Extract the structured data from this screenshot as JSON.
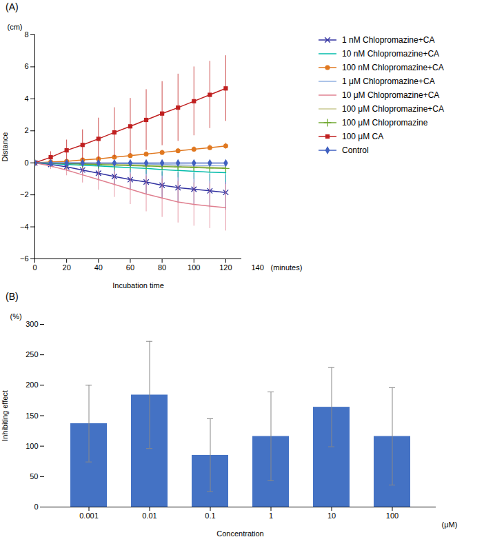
{
  "chart_data": [
    {
      "type": "line",
      "title": "(A)",
      "xlabel": "Incubation time",
      "ylabel": "Distance",
      "annotations": [
        {
          "text": "(cm)",
          "axis": "y"
        },
        {
          "text": "(minutes)",
          "axis": "x"
        },
        {
          "text": "140",
          "x": 140
        }
      ],
      "x": [
        0,
        10,
        20,
        30,
        40,
        50,
        60,
        70,
        80,
        90,
        100,
        110,
        120
      ],
      "series": [
        {
          "name": "1 nM Chlopromazine+CA",
          "color": "#3030A0",
          "marker": "times",
          "line_style": "solid",
          "values": [
            0,
            -0.1,
            -0.25,
            -0.45,
            -0.65,
            -0.85,
            -1.05,
            -1.2,
            -1.4,
            -1.55,
            -1.65,
            -1.75,
            -1.85
          ],
          "yerr": [
            0,
            0.15,
            0.25,
            0.35,
            0.45,
            0.55,
            0.65,
            0.75,
            0.85,
            0.95,
            1.0,
            1.05,
            1.1
          ]
        },
        {
          "name": "10 nM Chlopromazine+CA",
          "color": "#00BBAA",
          "marker": "none",
          "line_style": "solid",
          "values": [
            0,
            -0.05,
            -0.1,
            -0.15,
            -0.2,
            -0.25,
            -0.3,
            -0.35,
            -0.42,
            -0.48,
            -0.53,
            -0.58,
            -0.62
          ],
          "yerr": [
            0,
            0.08,
            0.12,
            0.16,
            0.2,
            0.25,
            0.3,
            0.35,
            0.4,
            0.45,
            0.5,
            0.55,
            0.6
          ]
        },
        {
          "name": "100 nM Chlopromazine+CA",
          "color": "#E07820",
          "marker": "circle",
          "line_style": "solid",
          "values": [
            0,
            0.05,
            0.1,
            0.18,
            0.25,
            0.35,
            0.45,
            0.55,
            0.65,
            0.75,
            0.85,
            0.95,
            1.05
          ],
          "yerr": [
            0,
            0.05,
            0.07,
            0.09,
            0.1,
            0.12,
            0.13,
            0.14,
            0.15,
            0.16,
            0.17,
            0.18,
            0.19
          ]
        },
        {
          "name": "1 μM Chlopromazine+CA",
          "color": "#90B0E0",
          "marker": "none",
          "line_style": "solid",
          "values": [
            0,
            0.01,
            0.0,
            -0.01,
            -0.02,
            -0.04,
            -0.06,
            -0.08,
            -0.1,
            -0.13,
            -0.15,
            -0.17,
            -0.19
          ],
          "yerr": [
            0,
            0.04,
            0.06,
            0.07,
            0.08,
            0.09,
            0.1,
            0.11,
            0.12,
            0.13,
            0.14,
            0.15,
            0.16
          ]
        },
        {
          "name": "10 μM Chlopromazine+CA",
          "color": "#E08090",
          "marker": "none",
          "line_style": "solid",
          "values": [
            0,
            -0.2,
            -0.45,
            -0.75,
            -1.05,
            -1.35,
            -1.65,
            -1.95,
            -2.2,
            -2.45,
            -2.6,
            -2.7,
            -2.8
          ],
          "yerr": [
            0,
            0.2,
            0.35,
            0.5,
            0.65,
            0.8,
            0.95,
            1.1,
            1.2,
            1.3,
            1.35,
            1.4,
            1.45
          ]
        },
        {
          "name": "100 μM Chlopromazine+CA",
          "color": "#C8C890",
          "marker": "none",
          "line_style": "solid",
          "values": [
            0,
            0.0,
            -0.02,
            -0.04,
            -0.06,
            -0.09,
            -0.12,
            -0.15,
            -0.18,
            -0.21,
            -0.24,
            -0.27,
            -0.3
          ],
          "yerr": [
            0,
            0.04,
            0.05,
            0.06,
            0.07,
            0.08,
            0.09,
            0.1,
            0.11,
            0.12,
            0.13,
            0.14,
            0.15
          ]
        },
        {
          "name": "100 μM Chlopromazine",
          "color": "#70A830",
          "marker": "plus",
          "line_style": "solid",
          "values": [
            0,
            -0.02,
            -0.05,
            -0.08,
            -0.11,
            -0.14,
            -0.17,
            -0.2,
            -0.23,
            -0.26,
            -0.29,
            -0.32,
            -0.35
          ],
          "yerr": [
            0,
            0.04,
            0.06,
            0.08,
            0.09,
            0.1,
            0.11,
            0.12,
            0.13,
            0.14,
            0.15,
            0.16,
            0.17
          ]
        },
        {
          "name": "100 μM CA",
          "color": "#C02020",
          "marker": "square",
          "line_style": "solid",
          "values": [
            0,
            0.35,
            0.78,
            1.12,
            1.5,
            1.9,
            2.28,
            2.68,
            3.08,
            3.45,
            3.85,
            4.25,
            4.65
          ],
          "yerr": [
            0,
            0.35,
            0.65,
            0.95,
            1.3,
            1.55,
            1.75,
            1.9,
            2.0,
            2.1,
            2.15,
            2.1,
            2.05
          ]
        },
        {
          "name": "Control",
          "color": "#4060C0",
          "marker": "diamond",
          "line_style": "solid",
          "values": [
            0,
            -0.01,
            -0.01,
            -0.01,
            -0.01,
            -0.01,
            -0.01,
            -0.01,
            -0.01,
            -0.01,
            -0.01,
            -0.01,
            -0.01
          ],
          "yerr": [
            0,
            0.02,
            0.02,
            0.03,
            0.03,
            0.03,
            0.04,
            0.04,
            0.04,
            0.05,
            0.05,
            0.05,
            0.06
          ]
        }
      ],
      "xlim": [
        0,
        130
      ],
      "xticks": [
        0,
        20,
        40,
        60,
        80,
        100,
        120
      ],
      "ylim": [
        -6,
        8
      ],
      "yticks": [
        -6,
        -4,
        -2,
        0,
        2,
        4,
        6,
        8
      ],
      "grid": false,
      "legend": "right"
    },
    {
      "type": "bar",
      "title": "(B)",
      "xlabel": "Concentration",
      "ylabel": "Inhibiting effect",
      "annotations": [
        {
          "text": "(%)",
          "axis": "y"
        },
        {
          "text": "(μM)",
          "axis": "x"
        }
      ],
      "categories": [
        "0.001",
        "0.01",
        "0.1",
        "1",
        "10",
        "100"
      ],
      "values": [
        137,
        184,
        85,
        116,
        164,
        116
      ],
      "yerr_lower": [
        63,
        88,
        60,
        73,
        65,
        80
      ],
      "yerr_upper": [
        63,
        88,
        60,
        73,
        65,
        80
      ],
      "color": "#4472C4",
      "ylim": [
        0,
        300
      ],
      "yticks": [
        0,
        50,
        100,
        150,
        200,
        250,
        300
      ],
      "grid": false
    }
  ]
}
